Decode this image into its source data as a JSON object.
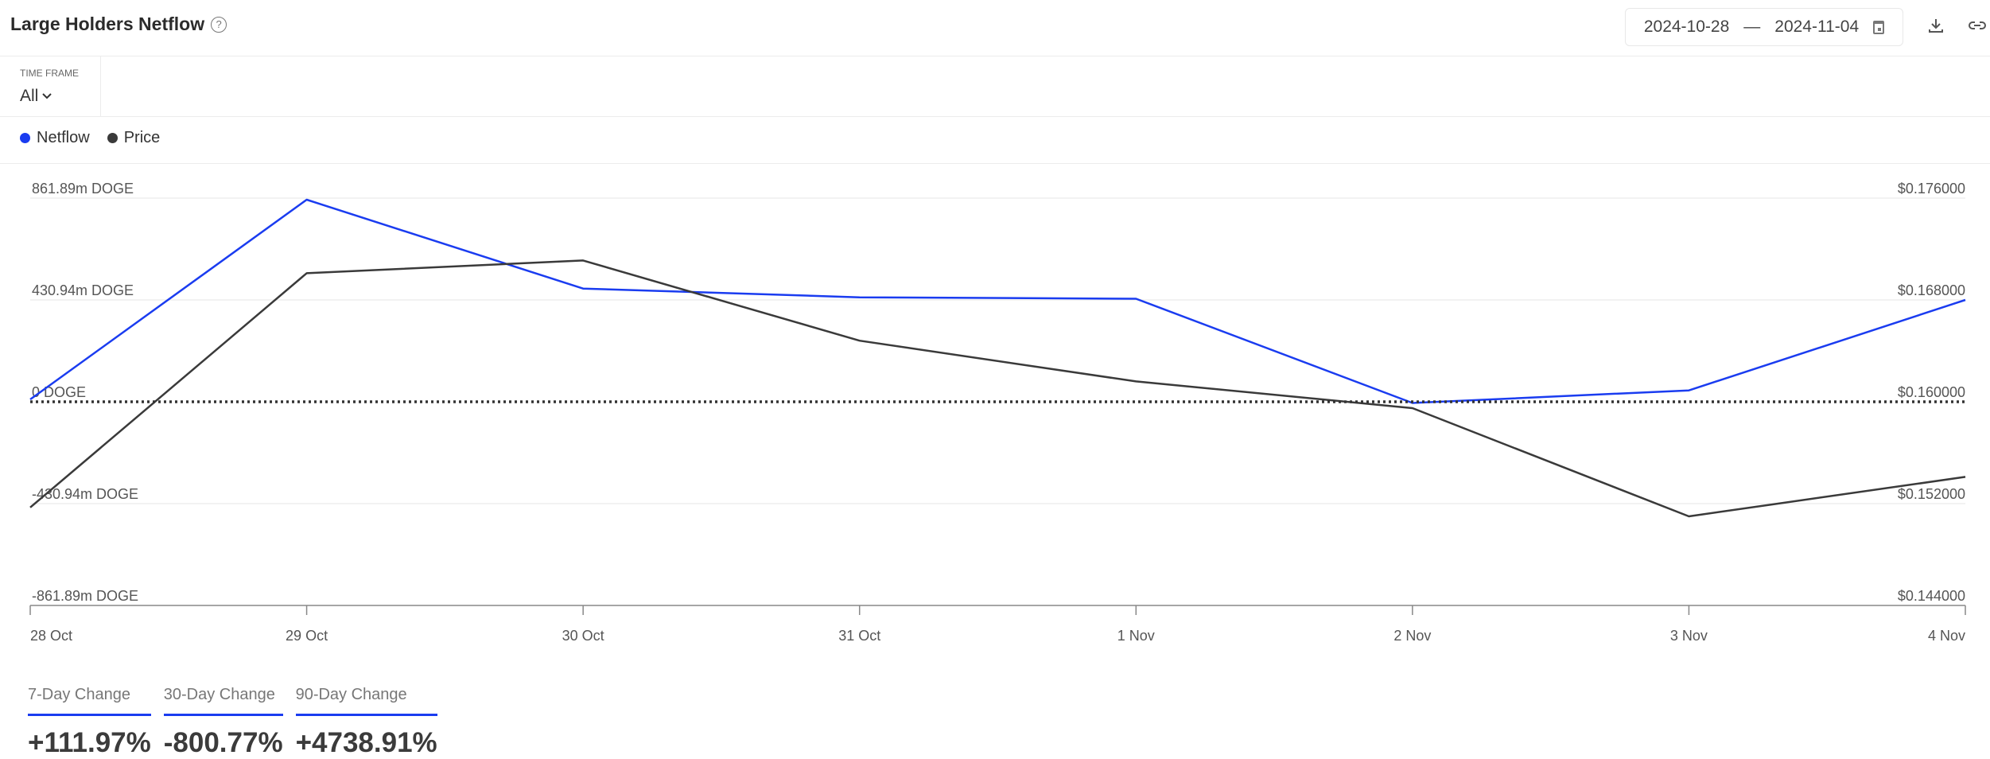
{
  "header": {
    "title": "Large Holders Netflow",
    "help_icon": "question-circle-icon",
    "date_start": "2024-10-28",
    "date_separator": "—",
    "date_end": "2024-11-04",
    "calendar_icon": "calendar-icon",
    "download_icon": "download-icon",
    "link_icon": "link-icon"
  },
  "timeframe": {
    "label": "TIME FRAME",
    "value": "All"
  },
  "legend": [
    {
      "label": "Netflow",
      "color": "#1a3cf0"
    },
    {
      "label": "Price",
      "color": "#3a3a3a"
    }
  ],
  "chart_data": {
    "type": "line",
    "categories": [
      "28 Oct",
      "29 Oct",
      "30 Oct",
      "31 Oct",
      "1 Nov",
      "2 Nov",
      "3 Nov",
      "4 Nov"
    ],
    "series": [
      {
        "name": "Netflow",
        "axis": "left",
        "color": "#1a3cf0",
        "unit": "m DOGE",
        "values": [
          10,
          855,
          479,
          442,
          436,
          -5,
          48,
          431
        ]
      },
      {
        "name": "Price",
        "axis": "right",
        "color": "#3a3a3a",
        "unit": "USD",
        "values": [
          0.1517,
          0.1701,
          0.1711,
          0.1648,
          0.1616,
          0.1595,
          0.151,
          0.1541
        ]
      }
    ],
    "left_axis": {
      "ylim": [
        -861.89,
        861.89
      ],
      "ticks": [
        "861.89m DOGE",
        "430.94m DOGE",
        "0 DOGE",
        "-430.94m DOGE",
        "-861.89m DOGE"
      ]
    },
    "right_axis": {
      "ylim": [
        0.144,
        0.176
      ],
      "ticks": [
        "$0.176000",
        "$0.168000",
        "$0.160000",
        "$0.152000",
        "$0.144000"
      ]
    },
    "zero_line": "dotted",
    "grid": true,
    "legend_position": "top-left"
  },
  "stats": [
    {
      "label": "7-Day Change",
      "value": "+111.97%"
    },
    {
      "label": "30-Day Change",
      "value": "-800.77%"
    },
    {
      "label": "90-Day Change",
      "value": "+4738.91%"
    }
  ]
}
